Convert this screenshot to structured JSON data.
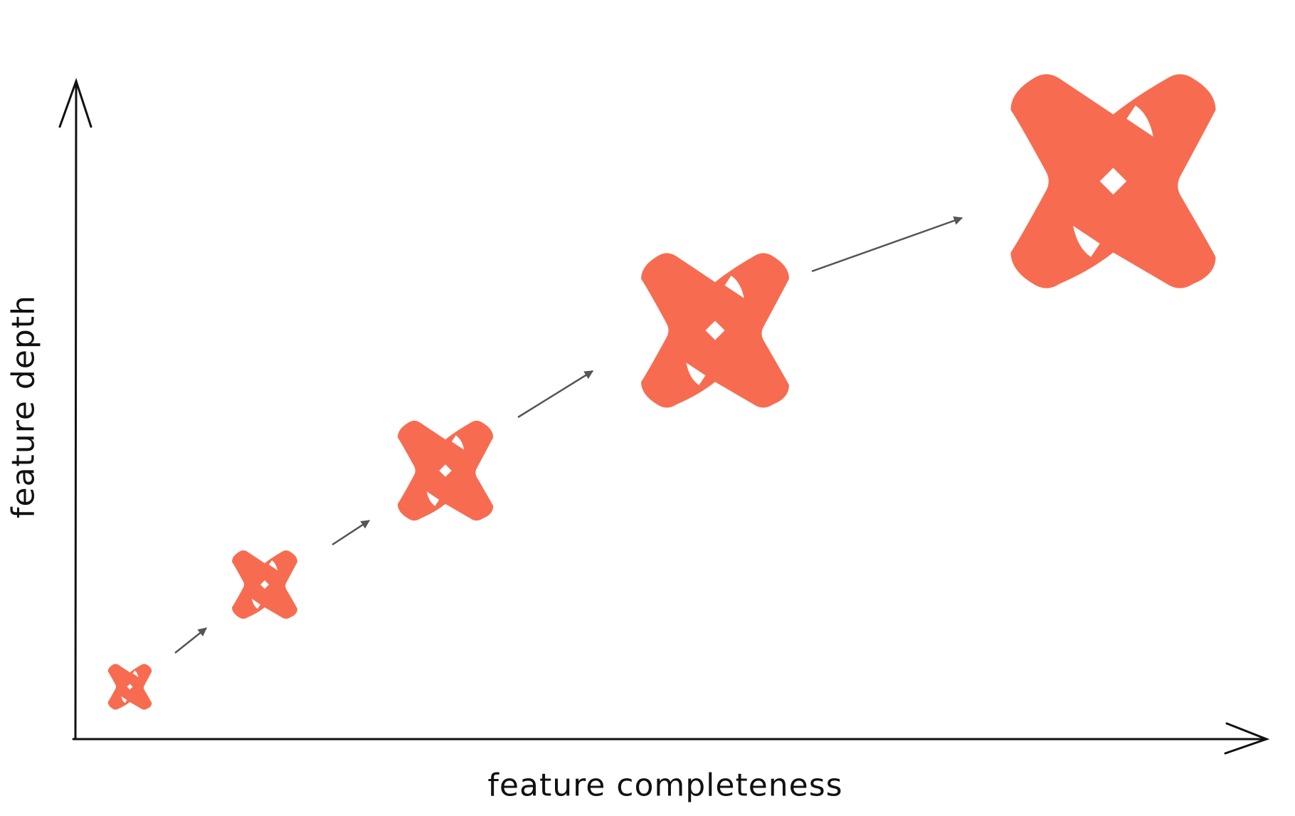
{
  "diagram": {
    "x_axis_label": "feature completeness",
    "y_axis_label": "feature depth",
    "colors": {
      "logo": "#f76c51",
      "arrow": "#555555",
      "axis": "#111111"
    },
    "icon": "dbt-x-logo"
  }
}
